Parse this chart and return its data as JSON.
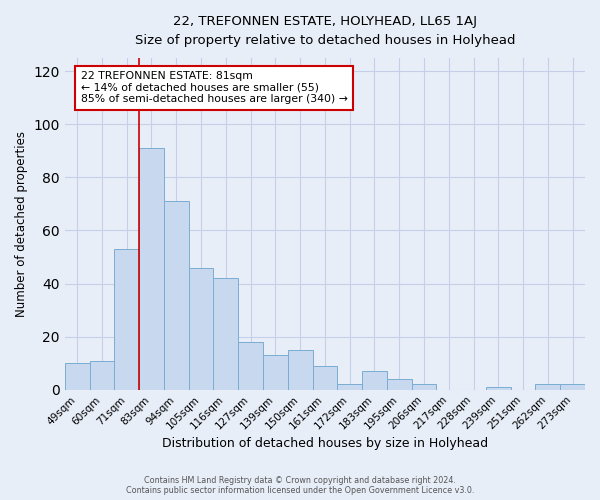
{
  "title": "22, TREFONNEN ESTATE, HOLYHEAD, LL65 1AJ",
  "subtitle": "Size of property relative to detached houses in Holyhead",
  "xlabel": "Distribution of detached houses by size in Holyhead",
  "ylabel": "Number of detached properties",
  "bar_labels": [
    "49sqm",
    "60sqm",
    "71sqm",
    "83sqm",
    "94sqm",
    "105sqm",
    "116sqm",
    "127sqm",
    "139sqm",
    "150sqm",
    "161sqm",
    "172sqm",
    "183sqm",
    "195sqm",
    "206sqm",
    "217sqm",
    "228sqm",
    "239sqm",
    "251sqm",
    "262sqm",
    "273sqm"
  ],
  "bar_values": [
    10,
    11,
    53,
    91,
    71,
    46,
    42,
    18,
    13,
    15,
    9,
    2,
    7,
    4,
    2,
    0,
    0,
    1,
    0,
    2,
    2
  ],
  "bar_color": "#c8d8ef",
  "bar_edge_color": "#7aadd4",
  "ylim": [
    0,
    125
  ],
  "yticks": [
    0,
    20,
    40,
    60,
    80,
    100,
    120
  ],
  "vline_color": "#cc0000",
  "annotation_text": "22 TREFONNEN ESTATE: 81sqm\n← 14% of detached houses are smaller (55)\n85% of semi-detached houses are larger (340) →",
  "annotation_box_color": "#ffffff",
  "annotation_border_color": "#cc0000",
  "footer_line1": "Contains HM Land Registry data © Crown copyright and database right 2024.",
  "footer_line2": "Contains public sector information licensed under the Open Government Licence v3.0.",
  "background_color": "#e8eef8",
  "plot_bg_color": "#e8eef8",
  "grid_color": "#c5cfe8"
}
